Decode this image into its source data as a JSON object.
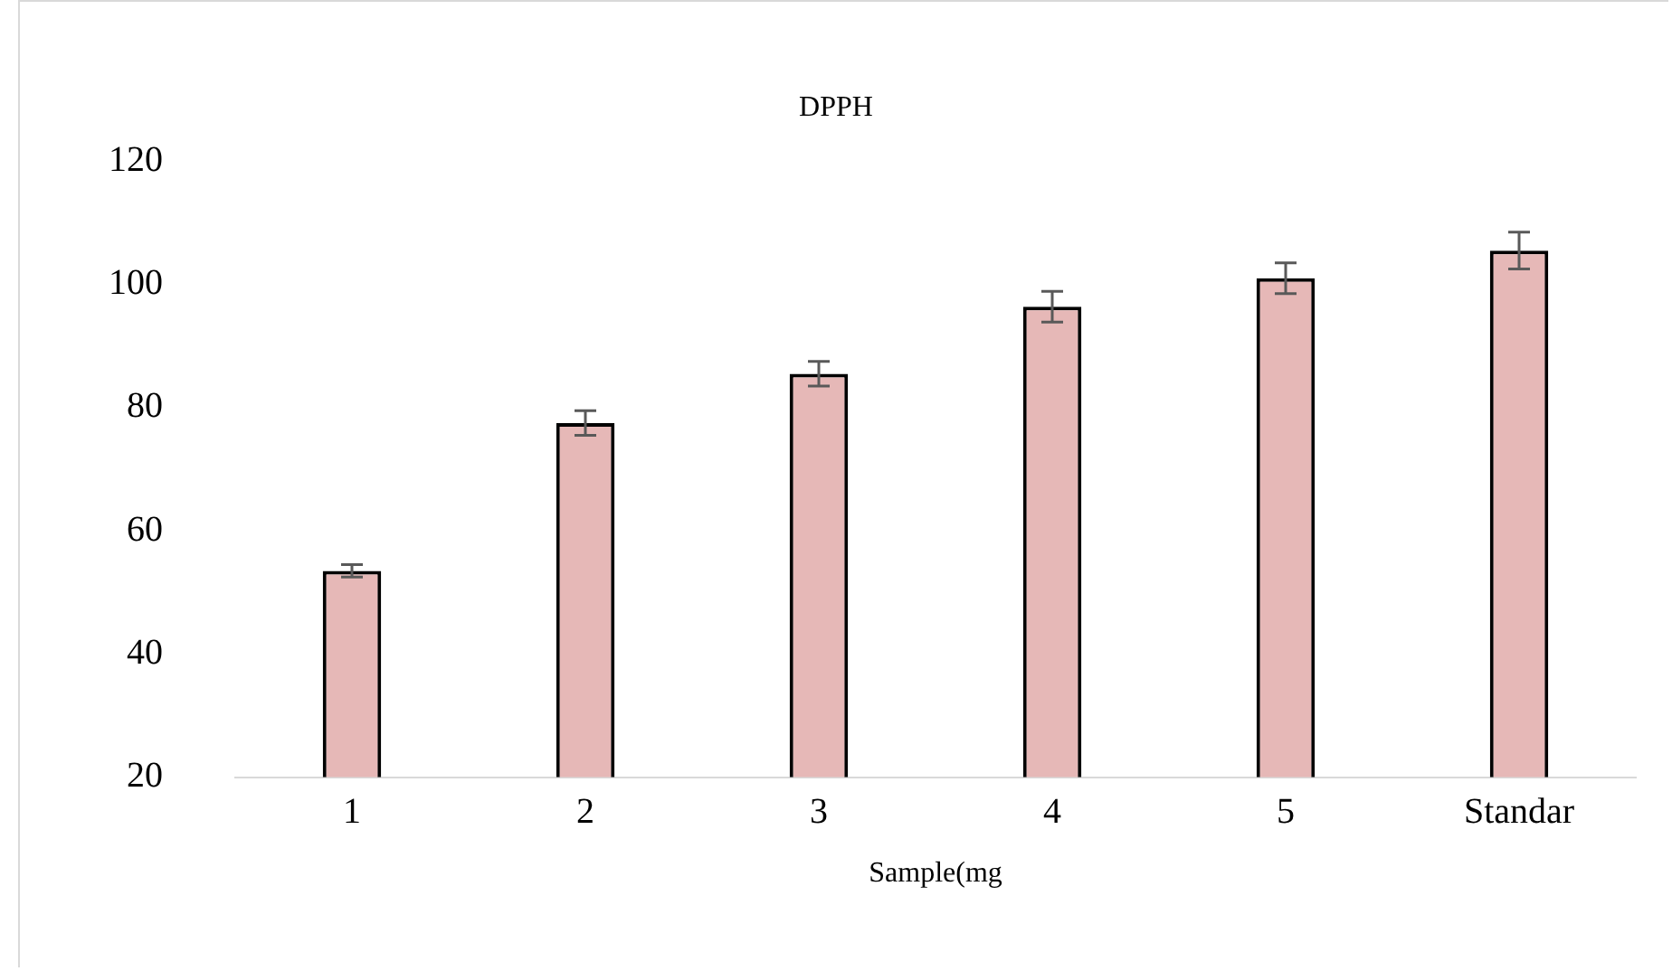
{
  "chart_data": {
    "type": "bar",
    "title": "DPPH",
    "xlabel": "Sample(mg",
    "categories": [
      "1",
      "2",
      "3",
      "4",
      "5",
      "Standar"
    ],
    "values": [
      53.5,
      77.5,
      85.5,
      96.4,
      101,
      105.5
    ],
    "errors": [
      1,
      2,
      2,
      2.5,
      2.5,
      3
    ],
    "color": "#e6b8b7",
    "ylim": [
      20,
      120
    ],
    "yticks": [
      20,
      40,
      60,
      80,
      100,
      120
    ],
    "grid": false,
    "legend": false
  }
}
